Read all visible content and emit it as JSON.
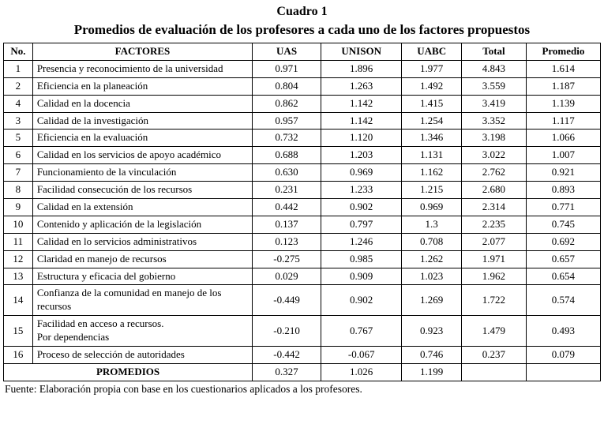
{
  "title_line1": "Cuadro 1",
  "title_line2": "Promedios de evaluación de los profesores a cada uno de los factores propuestos",
  "table": {
    "headers": [
      "No.",
      "FACTORES",
      "UAS",
      "UNISON",
      "UABC",
      "Total",
      "Promedio"
    ],
    "rows": [
      {
        "no": "1",
        "factor": "Presencia y reconocimiento de la universidad",
        "uas": "0.971",
        "unison": "1.896",
        "uabc": "1.977",
        "total": "4.843",
        "promedio": "1.614"
      },
      {
        "no": "2",
        "factor": "Eficiencia en la planeación",
        "uas": "0.804",
        "unison": "1.263",
        "uabc": "1.492",
        "total": "3.559",
        "promedio": "1.187"
      },
      {
        "no": "4",
        "factor": "Calidad en la docencia",
        "uas": "0.862",
        "unison": "1.142",
        "uabc": "1.415",
        "total": "3.419",
        "promedio": "1.139"
      },
      {
        "no": "3",
        "factor": "Calidad de la investigación",
        "uas": "0.957",
        "unison": "1.142",
        "uabc": "1.254",
        "total": "3.352",
        "promedio": "1.117"
      },
      {
        "no": "5",
        "factor": "Eficiencia en la evaluación",
        "uas": "0.732",
        "unison": "1.120",
        "uabc": "1.346",
        "total": "3.198",
        "promedio": "1.066"
      },
      {
        "no": "6",
        "factor": "Calidad en los servicios de apoyo académico",
        "uas": "0.688",
        "unison": "1.203",
        "uabc": "1.131",
        "total": "3.022",
        "promedio": "1.007"
      },
      {
        "no": "7",
        "factor": "Funcionamiento de la vinculación",
        "uas": "0.630",
        "unison": "0.969",
        "uabc": "1.162",
        "total": "2.762",
        "promedio": "0.921"
      },
      {
        "no": "8",
        "factor": "Facilidad consecución de los recursos",
        "uas": "0.231",
        "unison": "1.233",
        "uabc": "1.215",
        "total": "2.680",
        "promedio": "0.893"
      },
      {
        "no": "9",
        "factor": "Calidad en la extensión",
        "uas": "0.442",
        "unison": "0.902",
        "uabc": "0.969",
        "total": "2.314",
        "promedio": "0.771"
      },
      {
        "no": "10",
        "factor": "Contenido y aplicación de la legislación",
        "uas": "0.137",
        "unison": "0.797",
        "uabc": "1.3",
        "total": "2.235",
        "promedio": "0.745"
      },
      {
        "no": "11",
        "factor": "Calidad en lo servicios administrativos",
        "uas": "0.123",
        "unison": "1.246",
        "uabc": "0.708",
        "total": "2.077",
        "promedio": "0.692"
      },
      {
        "no": "12",
        "factor": "Claridad en manejo de recursos",
        "uas": "-0.275",
        "unison": "0.985",
        "uabc": "1.262",
        "total": "1.971",
        "promedio": "0.657"
      },
      {
        "no": "13",
        "factor": "Estructura y eficacia del gobierno",
        "uas": "0.029",
        "unison": "0.909",
        "uabc": "1.023",
        "total": "1.962",
        "promedio": "0.654"
      },
      {
        "no": "14",
        "factor": "Confianza de la comunidad en manejo de los recursos",
        "uas": "-0.449",
        "unison": "0.902",
        "uabc": "1.269",
        "total": "1.722",
        "promedio": "0.574"
      },
      {
        "no": "15",
        "factor": "Facilidad en acceso a recursos.\nPor dependencias",
        "uas": "-0.210",
        "unison": "0.767",
        "uabc": "0.923",
        "total": "1.479",
        "promedio": "0.493"
      },
      {
        "no": "16",
        "factor": "Proceso de selección de autoridades",
        "uas": "-0.442",
        "unison": "-0.067",
        "uabc": "0.746",
        "total": "0.237",
        "promedio": "0.079"
      }
    ],
    "footer_row": {
      "label": "PROMEDIOS",
      "uas": "0.327",
      "unison": "1.026",
      "uabc": "1.199",
      "total": "",
      "promedio": ""
    }
  },
  "source": "Fuente: Elaboración propia con base en los cuestionarios aplicados a los profesores."
}
